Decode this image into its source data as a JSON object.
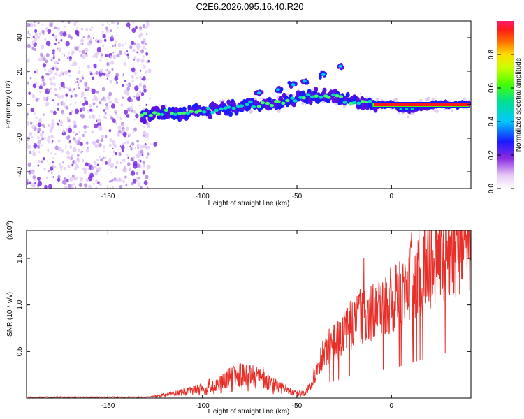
{
  "chart_data": [
    {
      "type": "heatmap",
      "title": "C2E6.2026.095.16.40.R20",
      "xlabel": "Height of straight line (km)",
      "ylabel": "Frequency (Hz)",
      "xlim": [
        -193,
        42
      ],
      "ylim": [
        -50,
        50
      ],
      "x_ticks": [
        -150,
        -100,
        -50,
        0
      ],
      "x_tick_labels": [
        "-150",
        "-100",
        "-50",
        "0"
      ],
      "y_ticks": [
        -40,
        -20,
        0,
        20,
        40
      ],
      "y_tick_labels": [
        "-40",
        "-20",
        "0",
        "20",
        "40"
      ],
      "colorbar": {
        "label": "Normalized spectral amplitude",
        "range": [
          0,
          1
        ],
        "ticks": [
          0.0,
          0.2,
          0.4,
          0.6,
          0.8
        ],
        "tick_labels": [
          "0.0",
          "0.2",
          "0.4",
          "0.6",
          "0.8"
        ]
      },
      "noise_region_x": [
        -193,
        -128
      ],
      "trace_points": [
        {
          "x": -132,
          "y": -6,
          "a": 0.35
        },
        {
          "x": -120,
          "y": -5,
          "a": 0.4
        },
        {
          "x": -110,
          "y": -5,
          "a": 0.42
        },
        {
          "x": -100,
          "y": -4,
          "a": 0.45
        },
        {
          "x": -90,
          "y": -2,
          "a": 0.45
        },
        {
          "x": -80,
          "y": -1,
          "a": 0.45
        },
        {
          "x": -70,
          "y": 0,
          "a": 0.48
        },
        {
          "x": -62,
          "y": 1,
          "a": 0.45
        },
        {
          "x": -55,
          "y": 2,
          "a": 0.4
        },
        {
          "x": -45,
          "y": 5,
          "a": 0.55
        },
        {
          "x": -38,
          "y": 5,
          "a": 0.6
        },
        {
          "x": -30,
          "y": 5,
          "a": 0.58
        },
        {
          "x": -22,
          "y": 2,
          "a": 0.55
        },
        {
          "x": -15,
          "y": 1,
          "a": 0.6
        },
        {
          "x": -8,
          "y": 0,
          "a": 0.9
        },
        {
          "x": 0,
          "y": 0,
          "a": 0.95
        },
        {
          "x": 5,
          "y": -2,
          "a": 0.7
        },
        {
          "x": 10,
          "y": -3,
          "a": 0.7
        },
        {
          "x": 15,
          "y": -1,
          "a": 0.8
        },
        {
          "x": 25,
          "y": 0,
          "a": 0.95
        },
        {
          "x": 35,
          "y": 0,
          "a": 0.95
        },
        {
          "x": 41,
          "y": 0,
          "a": 0.95
        }
      ],
      "side_branch_points": [
        {
          "x": -70,
          "y": 7
        },
        {
          "x": -60,
          "y": 9
        },
        {
          "x": -52,
          "y": 12
        },
        {
          "x": -46,
          "y": 14
        },
        {
          "x": -36,
          "y": 18
        },
        {
          "x": -27,
          "y": 23
        }
      ]
    },
    {
      "type": "line",
      "xlabel": "Height of straight line (km)",
      "ylabel": "SNR (10 * v/v)",
      "y_scale_label": "(x10",
      "y_scale_exponent": "4",
      "y_scale_suffix": ")",
      "xlim": [
        -193,
        42
      ],
      "ylim": [
        0,
        1.8
      ],
      "x_ticks": [
        -150,
        -100,
        -50,
        0
      ],
      "x_tick_labels": [
        "-150",
        "-100",
        "-50",
        "0"
      ],
      "y_ticks": [
        0.5,
        1.0,
        1.5
      ],
      "y_tick_labels": [
        "0.5",
        "1.0",
        "1.5"
      ],
      "series": [
        {
          "name": "SNR",
          "color": "#e8302a",
          "envelope_x": [
            -193,
            -130,
            -122,
            -112,
            -100,
            -90,
            -82,
            -75,
            -68,
            -60,
            -52,
            -46,
            -42,
            -38,
            -34,
            -30,
            -26,
            -22,
            -18,
            -14,
            -10,
            -5,
            0,
            5,
            10,
            15,
            20,
            25,
            30,
            35,
            42
          ],
          "envelope_y": [
            0.01,
            0.01,
            0.03,
            0.06,
            0.1,
            0.17,
            0.25,
            0.24,
            0.2,
            0.12,
            0.06,
            0.05,
            0.15,
            0.4,
            0.55,
            0.6,
            0.7,
            0.78,
            0.85,
            0.9,
            0.92,
            1.0,
            1.05,
            1.15,
            1.25,
            1.35,
            1.45,
            1.55,
            1.62,
            1.68,
            1.72
          ]
        }
      ]
    }
  ]
}
